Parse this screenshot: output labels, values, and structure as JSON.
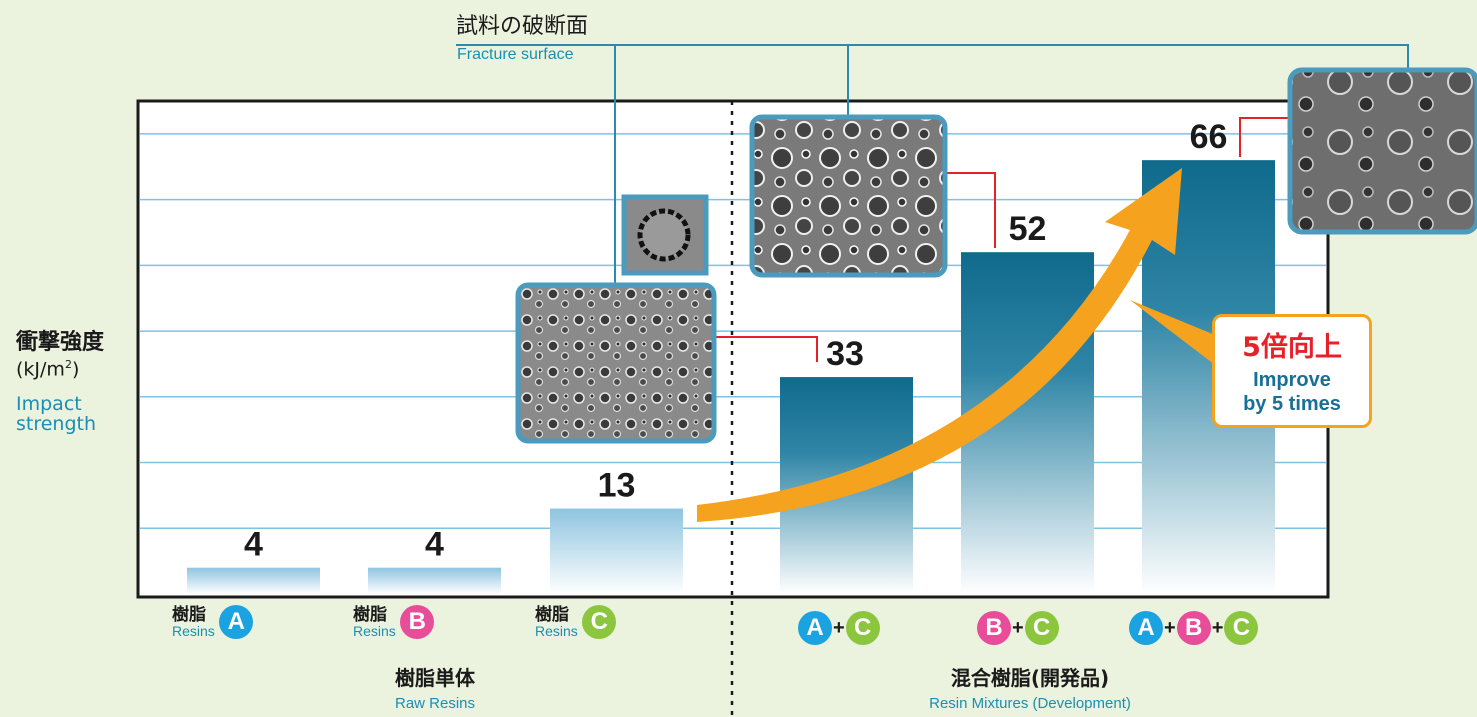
{
  "chart_data": {
    "type": "bar",
    "categories": [
      "樹脂 Resins A",
      "樹脂 Resins B",
      "樹脂 Resins C",
      "A+C",
      "B+C",
      "A+B+C"
    ],
    "values": [
      4,
      4,
      13,
      33,
      52,
      66
    ],
    "ylim": [
      0,
      75
    ],
    "grid": true,
    "ylabel": {
      "jp": "衝撃強度",
      "unit": "(kJ/m",
      "unit_sup": "2",
      "unit_close": ")",
      "en1": "Impact",
      "en2": "strength"
    },
    "fracture_label": {
      "jp": "試料の破断面",
      "en": "Fracture surface"
    },
    "category_labels": [
      {
        "jp": "樹脂",
        "en": "Resins",
        "letters": [
          "A"
        ]
      },
      {
        "jp": "樹脂",
        "en": "Resins",
        "letters": [
          "B"
        ]
      },
      {
        "jp": "樹脂",
        "en": "Resins",
        "letters": [
          "C"
        ]
      },
      {
        "letters": [
          "A",
          "C"
        ]
      },
      {
        "letters": [
          "B",
          "C"
        ]
      },
      {
        "letters": [
          "A",
          "B",
          "C"
        ]
      }
    ],
    "groups": [
      {
        "jp": "樹脂単体",
        "en": "Raw Resins"
      },
      {
        "jp": "混合樹脂(開発品)",
        "en": "Resin Mixtures (Development)"
      }
    ],
    "callout": {
      "jp": "5倍向上",
      "en1": "Improve",
      "en2": "by 5 times"
    },
    "plus_sign": "+",
    "colors": {
      "raw_bar": "#8ec4e0",
      "mix_bar": "#0f6a8c",
      "grid": "#7cc3e4",
      "arrow": "#f5a21f",
      "connector_red": "#e8202a",
      "connector_blue": "#2a8ab0"
    }
  }
}
